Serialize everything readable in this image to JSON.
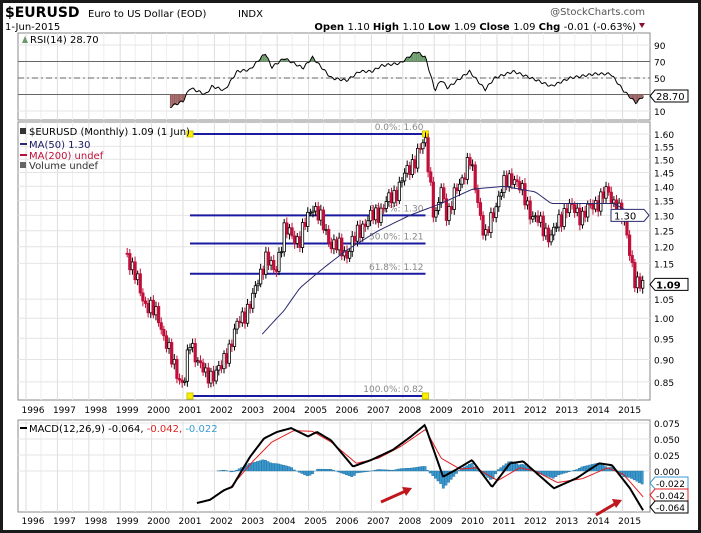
{
  "header": {
    "symbol": "$EURUSD",
    "description": "Euro to US Dollar (EOD)",
    "exchange": "INDX",
    "date": "1-Jun-2015",
    "watermark": "@StockCharts.com",
    "ohlc": {
      "open_label": "Open",
      "open": "1.10",
      "high_label": "High",
      "high": "1.10",
      "low_label": "Low",
      "low": "1.09",
      "close_label": "Close",
      "close": "1.09",
      "chg_label": "Chg",
      "chg": "-0.01 (-0.63%)"
    }
  },
  "colors": {
    "up": "#000000",
    "down": "#c0103a",
    "fib": "#1a1aa0",
    "ma50": "#2a2a70",
    "macd": "#000000",
    "signal": "#e02020",
    "hist": "#3a9ad0",
    "rsi_high": "#6a9a6a",
    "rsi_low": "#9a6060"
  },
  "chart_data": [
    {
      "type": "line",
      "title": "RSI(14) 28.70",
      "ylim": [
        0,
        100
      ],
      "yticks": [
        "90",
        "70",
        "50",
        "10"
      ],
      "ytick_values": [
        90,
        70,
        50,
        10
      ],
      "reference_lines": [
        70,
        50,
        30
      ],
      "last_value_label": "28.70",
      "series": [
        {
          "name": "RSI(14)",
          "x": [
            2000.36,
            2000.78,
            2001.0,
            2001.5,
            2001.7,
            2002.1,
            2002.5,
            2002.9,
            2003.4,
            2003.6,
            2004.0,
            2004.6,
            2004.9,
            2005.5,
            2006.0,
            2006.4,
            2006.8,
            2007.1,
            2007.7,
            2008.2,
            2008.5,
            2008.8,
            2009.0,
            2009.2,
            2009.9,
            2010.4,
            2010.7,
            2011.3,
            2012.0,
            2012.5,
            2013.1,
            2013.9,
            2014.4,
            2014.8,
            2015.2,
            2015.46
          ],
          "y": [
            15,
            22,
            38,
            30,
            40,
            35,
            58,
            60,
            80,
            63,
            74,
            62,
            75,
            50,
            47,
            58,
            58,
            65,
            68,
            82,
            75,
            35,
            48,
            38,
            58,
            36,
            50,
            58,
            48,
            40,
            50,
            55,
            55,
            35,
            20,
            28.7
          ]
        }
      ]
    },
    {
      "type": "candlestick",
      "title": "$EURUSD (Monthly) 1.09 (1 Jun)",
      "scale": "log",
      "ylim": [
        0.81,
        1.63
      ],
      "yticks": [
        "1.60",
        "1.55",
        "1.50",
        "1.45",
        "1.40",
        "1.35",
        "1.30",
        "1.25",
        "1.20",
        "1.15",
        "1.05",
        "1.00",
        "0.95",
        "0.90",
        "0.85"
      ],
      "ytick_values": [
        1.6,
        1.55,
        1.5,
        1.45,
        1.4,
        1.35,
        1.3,
        1.25,
        1.2,
        1.15,
        1.05,
        1.0,
        0.95,
        0.9,
        0.85
      ],
      "xticks": [
        "1996",
        "1997",
        "1998",
        "1999",
        "2000",
        "2001",
        "2002",
        "2003",
        "2004",
        "2005",
        "2006",
        "2007",
        "2008",
        "2009",
        "2010",
        "2011",
        "2012",
        "2013",
        "2014",
        "2015"
      ],
      "xlim": [
        1995.5,
        2015.7
      ],
      "legend": [
        "$EURUSD (Monthly) 1.09 (1 Jun)",
        "MA(50) 1.30",
        "MA(200) undef",
        "Volume undef"
      ],
      "price_keypoints": {
        "x": [
          1999.0,
          1999.5,
          2000.0,
          2000.4,
          2000.8,
          2001.0,
          2001.5,
          2002.0,
          2002.5,
          2003.0,
          2003.4,
          2003.7,
          2004.0,
          2004.5,
          2004.9,
          2005.5,
          2006.0,
          2006.5,
          2007.0,
          2007.5,
          2008.0,
          2008.5,
          2008.8,
          2009.0,
          2009.2,
          2009.9,
          2010.4,
          2010.9,
          2011.3,
          2011.9,
          2012.5,
          2013.0,
          2013.5,
          2014.3,
          2014.6,
          2014.9,
          2015.2,
          2015.42
        ],
        "y": [
          1.18,
          1.05,
          1.0,
          0.9,
          0.84,
          0.94,
          0.86,
          0.88,
          0.98,
          1.05,
          1.17,
          1.12,
          1.25,
          1.22,
          1.34,
          1.21,
          1.18,
          1.27,
          1.31,
          1.37,
          1.47,
          1.57,
          1.27,
          1.39,
          1.3,
          1.5,
          1.22,
          1.39,
          1.44,
          1.3,
          1.23,
          1.33,
          1.3,
          1.38,
          1.33,
          1.25,
          1.08,
          1.09
        ]
      },
      "ma50": {
        "x": [
          2003.3,
          2004.0,
          2004.5,
          2005.3,
          2006.0,
          2007.0,
          2008.0,
          2009.0,
          2010.0,
          2011.0,
          2012.0,
          2012.5,
          2013.5,
          2014.5,
          2015.0,
          2015.4
        ],
        "y": [
          0.96,
          1.02,
          1.08,
          1.14,
          1.19,
          1.25,
          1.3,
          1.34,
          1.39,
          1.4,
          1.38,
          1.34,
          1.34,
          1.34,
          1.31,
          1.3
        ]
      },
      "last_labels": {
        "ma50": "1.30",
        "close": "1.09"
      },
      "fibonacci": {
        "start": 2001.0,
        "end": 2008.5,
        "levels": [
          {
            "label": "0.0%: 1.60",
            "value": 1.6
          },
          {
            "label": "38.2%: 1.30",
            "value": 1.3
          },
          {
            "label": "50.0%: 1.21",
            "value": 1.21
          },
          {
            "label": "61.8%: 1.12",
            "value": 1.12
          },
          {
            "label": "100.0%: 0.82",
            "value": 0.82
          }
        ]
      }
    },
    {
      "type": "line",
      "title": "MACD(12,26,9)",
      "legend": {
        "macd": "-0.064,",
        "signal": "-0.042,",
        "hist": "-0.022"
      },
      "yticks": [
        "0.075",
        "0.050",
        "0.025",
        "0.000"
      ],
      "ytick_values": [
        0.075,
        0.05,
        0.025,
        0
      ],
      "last_labels": {
        "hist": "-0.022",
        "signal": "-0.042",
        "macd": "-0.064"
      },
      "xticks": [
        "1996",
        "1997",
        "1998",
        "1999",
        "2000",
        "2001",
        "2002",
        "2003",
        "2004",
        "2005",
        "2006",
        "2007",
        "2008",
        "2009",
        "2010",
        "2011",
        "2012",
        "2013",
        "2014",
        "2015"
      ],
      "series": [
        {
          "name": "MACD",
          "x": [
            2001.22,
            2001.64,
            2002.08,
            2002.34,
            2002.91,
            2003.36,
            2003.77,
            2004.22,
            2004.76,
            2005.04,
            2005.49,
            2006.19,
            2006.76,
            2007.46,
            2008.04,
            2008.48,
            2009.06,
            2009.47,
            2009.98,
            2010.62,
            2011.19,
            2011.61,
            2012.59,
            2013.32,
            2014.03,
            2014.44,
            2015.01,
            2015.46
          ],
          "y": [
            -0.05,
            -0.045,
            -0.03,
            -0.025,
            0.022,
            0.051,
            0.061,
            0.067,
            0.054,
            0.061,
            0.048,
            0.007,
            0.017,
            0.033,
            0.054,
            0.072,
            -0.009,
            0.002,
            0.017,
            -0.025,
            0.012,
            0.015,
            -0.027,
            -0.011,
            0.012,
            0.009,
            -0.027,
            -0.064
          ]
        },
        {
          "name": "Signal",
          "x": [
            2001.6,
            2002.3,
            2003.0,
            2003.6,
            2004.3,
            2004.9,
            2005.5,
            2006.3,
            2007.0,
            2007.7,
            2008.5,
            2009.0,
            2009.6,
            2010.1,
            2010.8,
            2011.5,
            2012.0,
            2012.7,
            2013.5,
            2014.3,
            2014.8,
            2015.46
          ],
          "y": [
            -0.045,
            -0.025,
            0.015,
            0.045,
            0.063,
            0.062,
            0.045,
            0.012,
            0.02,
            0.038,
            0.065,
            0.02,
            0.003,
            0.005,
            -0.015,
            0.005,
            0.0,
            -0.018,
            -0.012,
            0.005,
            -0.005,
            -0.042
          ]
        }
      ],
      "histogram_start": 2001.9
    }
  ]
}
